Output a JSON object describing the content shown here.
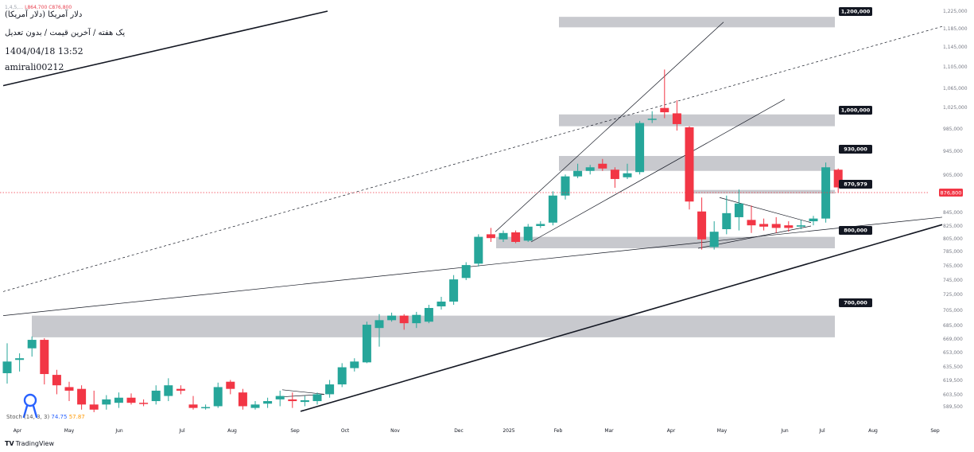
{
  "header": {
    "symbol": "دلار آمریکا (دلار آمریکا)",
    "interval": "یک هفته / آخرین قیمت / بدون تعدیل",
    "datetime": "1404/04/18 13:52",
    "user": "amirali00212",
    "ohlc_prefix": "1,4,5,…",
    "ohlc_low": "L864,700",
    "ohlc_close": "C876,800"
  },
  "indicator": {
    "name": "Stoch",
    "params": "(14, 3, 3)",
    "k": "74.75",
    "d": "57.87"
  },
  "branding": {
    "logo_icon": "tradingview-logo-icon",
    "logo_text": "TradingView"
  },
  "colors": {
    "up": "#26a69a",
    "down": "#f23645",
    "zone": "#c5c6cb",
    "price_label_bg": "#f23645"
  },
  "chart_data": {
    "type": "candlestick",
    "timeframe": "weekly",
    "current_price_label": "876,800",
    "y_ticks": [
      "1,225,000",
      "1,185,000",
      "1,145,000",
      "1,105,000",
      "1,065,000",
      "1,025,000",
      "985,000",
      "945,000",
      "905,000",
      "865,000",
      "845,000",
      "825,000",
      "805,000",
      "785,000",
      "765,000",
      "745,000",
      "725,000",
      "705,000",
      "685,000",
      "669,000",
      "653,000",
      "635,500",
      "619,500",
      "603,500",
      "589,500"
    ],
    "x_ticks": [
      "Apr",
      "May",
      "Jun",
      "Jul",
      "Aug",
      "Sep",
      "Oct",
      "Nov",
      "Dec",
      "2025",
      "Feb",
      "Mar",
      "Apr",
      "May",
      "Jun",
      "Jul",
      "Aug",
      "Sep"
    ],
    "level_labels": [
      "1,200,000",
      "1,000,000",
      "930,000",
      "870,979",
      "800,000",
      "700,000"
    ],
    "zones": [
      {
        "label": "1,200,000",
        "from": 1188000,
        "to": 1212000
      },
      {
        "label": "1,000,000",
        "from": 990000,
        "to": 1012000
      },
      {
        "label": "930,000",
        "from": 912000,
        "to": 937000
      },
      {
        "label": "870,979",
        "from": 864000,
        "to": 871000
      },
      {
        "label": "800,000",
        "from": 790000,
        "to": 808000
      },
      {
        "label": "700,000",
        "from": 671000,
        "to": 698000
      }
    ],
    "candles": [
      {
        "date": "Apr",
        "o": 628000,
        "h": 664000,
        "l": 616000,
        "c": 642000
      },
      {
        "date": "",
        "o": 644000,
        "h": 652000,
        "l": 630000,
        "c": 646000
      },
      {
        "date": "",
        "o": 658000,
        "h": 672000,
        "l": 648000,
        "c": 668000
      },
      {
        "date": "",
        "o": 668000,
        "h": 670000,
        "l": 615000,
        "c": 627000
      },
      {
        "date": "May",
        "o": 626000,
        "h": 632000,
        "l": 604000,
        "c": 614000
      },
      {
        "date": "",
        "o": 612000,
        "h": 618000,
        "l": 596000,
        "c": 608000
      },
      {
        "date": "",
        "o": 610000,
        "h": 614000,
        "l": 586000,
        "c": 592000
      },
      {
        "date": "",
        "o": 592000,
        "h": 608000,
        "l": 583000,
        "c": 586000
      },
      {
        "date": "",
        "o": 592000,
        "h": 603000,
        "l": 586000,
        "c": 598000
      },
      {
        "date": "Jun",
        "o": 594000,
        "h": 606000,
        "l": 588000,
        "c": 600000
      },
      {
        "date": "",
        "o": 600000,
        "h": 605000,
        "l": 592000,
        "c": 594000
      },
      {
        "date": "",
        "o": 594000,
        "h": 598000,
        "l": 590000,
        "c": 593000
      },
      {
        "date": "",
        "o": 596000,
        "h": 614000,
        "l": 592000,
        "c": 608000
      },
      {
        "date": "Jul",
        "o": 602000,
        "h": 622000,
        "l": 596000,
        "c": 614000
      },
      {
        "date": "",
        "o": 610000,
        "h": 614000,
        "l": 604000,
        "c": 608000
      },
      {
        "date": "",
        "o": 592000,
        "h": 602000,
        "l": 586000,
        "c": 588000
      },
      {
        "date": "",
        "o": 588000,
        "h": 592000,
        "l": 586000,
        "c": 589000
      },
      {
        "date": "Aug",
        "o": 590000,
        "h": 617000,
        "l": 588000,
        "c": 612000
      },
      {
        "date": "",
        "o": 618000,
        "h": 620000,
        "l": 604000,
        "c": 610000
      },
      {
        "date": "",
        "o": 606000,
        "h": 610000,
        "l": 586000,
        "c": 590000
      },
      {
        "date": "",
        "o": 588000,
        "h": 596000,
        "l": 586000,
        "c": 592000
      },
      {
        "date": "",
        "o": 593000,
        "h": 600000,
        "l": 588000,
        "c": 596000
      },
      {
        "date": "Sep",
        "o": 598000,
        "h": 608000,
        "l": 590000,
        "c": 602000
      },
      {
        "date": "",
        "o": 598000,
        "h": 606000,
        "l": 588000,
        "c": 596000
      },
      {
        "date": "",
        "o": 595000,
        "h": 602000,
        "l": 590000,
        "c": 597000
      },
      {
        "date": "",
        "o": 596000,
        "h": 606000,
        "l": 592000,
        "c": 604000
      },
      {
        "date": "Oct",
        "o": 604000,
        "h": 620000,
        "l": 600000,
        "c": 615000
      },
      {
        "date": "",
        "o": 615000,
        "h": 640000,
        "l": 612000,
        "c": 635000
      },
      {
        "date": "",
        "o": 634000,
        "h": 646000,
        "l": 630000,
        "c": 642000
      },
      {
        "date": "",
        "o": 641000,
        "h": 690000,
        "l": 640000,
        "c": 686000
      },
      {
        "date": "Nov",
        "o": 682000,
        "h": 700000,
        "l": 660000,
        "c": 692000
      },
      {
        "date": "",
        "o": 692000,
        "h": 702000,
        "l": 690000,
        "c": 698000
      },
      {
        "date": "",
        "o": 698000,
        "h": 700000,
        "l": 680000,
        "c": 688000
      },
      {
        "date": "",
        "o": 688000,
        "h": 703000,
        "l": 682000,
        "c": 699000
      },
      {
        "date": "",
        "o": 690000,
        "h": 712000,
        "l": 688000,
        "c": 708000
      },
      {
        "date": "Dec",
        "o": 710000,
        "h": 722000,
        "l": 706000,
        "c": 716000
      },
      {
        "date": "",
        "o": 716000,
        "h": 752000,
        "l": 712000,
        "c": 746000
      },
      {
        "date": "",
        "o": 748000,
        "h": 770000,
        "l": 745000,
        "c": 766000
      },
      {
        "date": "",
        "o": 768000,
        "h": 812000,
        "l": 764000,
        "c": 808000
      },
      {
        "date": "2025",
        "o": 812000,
        "h": 822000,
        "l": 800000,
        "c": 806000
      },
      {
        "date": "",
        "o": 804000,
        "h": 818000,
        "l": 800000,
        "c": 814000
      },
      {
        "date": "",
        "o": 815000,
        "h": 818000,
        "l": 798000,
        "c": 800000
      },
      {
        "date": "",
        "o": 802000,
        "h": 828000,
        "l": 800000,
        "c": 824000
      },
      {
        "date": "",
        "o": 825000,
        "h": 832000,
        "l": 822000,
        "c": 828000
      },
      {
        "date": "",
        "o": 830000,
        "h": 868000,
        "l": 826000,
        "c": 862000
      },
      {
        "date": "Feb",
        "o": 862000,
        "h": 906000,
        "l": 858000,
        "c": 902000
      },
      {
        "date": "",
        "o": 902000,
        "h": 924000,
        "l": 898000,
        "c": 912000
      },
      {
        "date": "",
        "o": 912000,
        "h": 922000,
        "l": 906000,
        "c": 918000
      },
      {
        "date": "",
        "o": 924000,
        "h": 932000,
        "l": 912000,
        "c": 916000
      },
      {
        "date": "",
        "o": 914000,
        "h": 918000,
        "l": 876000,
        "c": 896000
      },
      {
        "date": "Mar",
        "o": 900000,
        "h": 924000,
        "l": 896000,
        "c": 908000
      },
      {
        "date": "",
        "o": 910000,
        "h": 1000000,
        "l": 906000,
        "c": 996000
      },
      {
        "date": "",
        "o": 1002000,
        "h": 1018000,
        "l": 996000,
        "c": 1004000
      },
      {
        "date": "",
        "o": 1024000,
        "h": 1100000,
        "l": 1005000,
        "c": 1016000
      },
      {
        "date": "",
        "o": 1014000,
        "h": 1040000,
        "l": 982000,
        "c": 994000
      },
      {
        "date": "Apr",
        "o": 988000,
        "h": 990000,
        "l": 848000,
        "c": 856000
      },
      {
        "date": "",
        "o": 846000,
        "h": 860000,
        "l": 788000,
        "c": 804000
      },
      {
        "date": "",
        "o": 792000,
        "h": 832000,
        "l": 788000,
        "c": 816000
      },
      {
        "date": "",
        "o": 820000,
        "h": 862000,
        "l": 812000,
        "c": 844000
      },
      {
        "date": "May",
        "o": 838000,
        "h": 872000,
        "l": 818000,
        "c": 854000
      },
      {
        "date": "",
        "o": 834000,
        "h": 852000,
        "l": 814000,
        "c": 826000
      },
      {
        "date": "",
        "o": 828000,
        "h": 836000,
        "l": 818000,
        "c": 824000
      },
      {
        "date": "",
        "o": 828000,
        "h": 838000,
        "l": 814000,
        "c": 822000
      },
      {
        "date": "",
        "o": 826000,
        "h": 832000,
        "l": 816000,
        "c": 822000
      },
      {
        "date": "Jun",
        "o": 824000,
        "h": 834000,
        "l": 820000,
        "c": 826000
      },
      {
        "date": "",
        "o": 832000,
        "h": 840000,
        "l": 826000,
        "c": 836000
      },
      {
        "date": "",
        "o": 836000,
        "h": 926000,
        "l": 830000,
        "c": 918000
      },
      {
        "date": "Jul",
        "o": 914000,
        "h": 916000,
        "l": 864700,
        "c": 876800
      }
    ],
    "trendlines": [
      {
        "style": "solid-thick",
        "x1": 4,
        "y1": 1070000,
        "x2": 412,
        "y2": 1225000
      },
      {
        "style": "solid-thick",
        "x1": 378,
        "y1": 584000,
        "x2": 1185,
        "y2": 827000
      },
      {
        "style": "solid-thin",
        "x1": 4,
        "y1": 698000,
        "x2": 1185,
        "y2": 838000
      },
      {
        "style": "dashed",
        "x1": 4,
        "y1": 729000,
        "x2": 1185,
        "y2": 1190000
      },
      {
        "style": "solid-thin",
        "x1": 623,
        "y1": 816000,
        "x2": 910,
        "y2": 1200000
      },
      {
        "style": "solid-thin",
        "x1": 668,
        "y1": 800000,
        "x2": 987,
        "y2": 1042000
      },
      {
        "style": "solid-thin",
        "x1": 355,
        "y1": 609000,
        "x2": 408,
        "y2": 604000
      },
      {
        "style": "solid-thin",
        "x1": 355,
        "y1": 601000,
        "x2": 408,
        "y2": 604000
      },
      {
        "style": "solid-thin",
        "x1": 905,
        "y1": 860000,
        "x2": 1020,
        "y2": 830000
      },
      {
        "style": "solid-thin",
        "x1": 878,
        "y1": 790000,
        "x2": 1020,
        "y2": 825000
      }
    ]
  }
}
